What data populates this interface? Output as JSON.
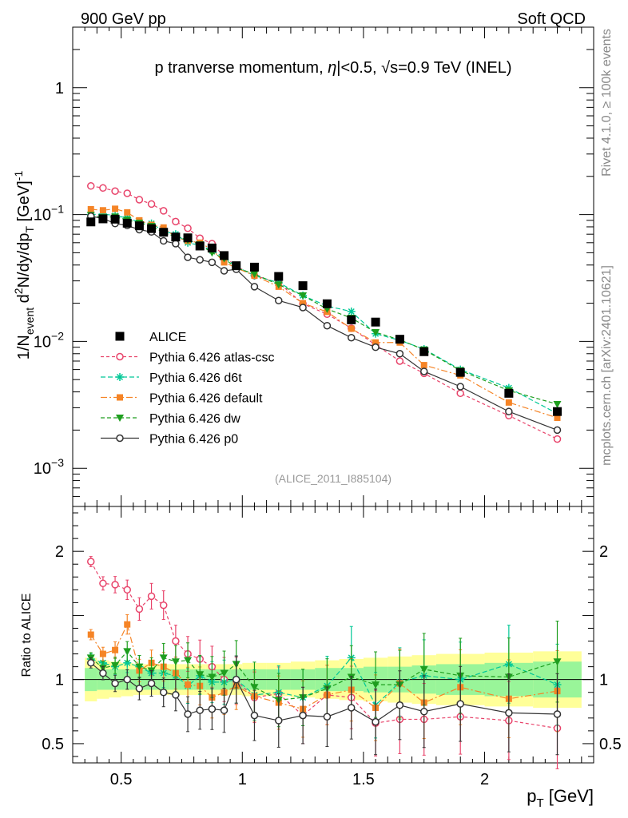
{
  "header": {
    "left": "900 GeV pp",
    "right": "Soft QCD"
  },
  "side_labels": {
    "rivet": "Rivet 4.1.0, ≥ 100k events",
    "mcplots": "mcplots.cern.ch [arXiv:2401.10621]"
  },
  "chart_data": {
    "type": "line",
    "title_parts": {
      "t1": "p tranverse momentum, ",
      "eta": "η",
      "t2": "|<0.5, ",
      "sqrt": "√s",
      "t3": "=0.9 TeV (INEL)"
    },
    "ylabel_parts": {
      "a": "1/N",
      "b": "event",
      "c": " d",
      "d": "2",
      "e": "N/dy/dp",
      "f": "T",
      "g": " [GeV]",
      "h": "-1"
    },
    "xlabel_parts": {
      "a": "p",
      "b": "T",
      "c": " [GeV]"
    },
    "ratio_ylabel": "Ratio to ALICE",
    "analysis_id": "(ALICE_2011_I885104)",
    "xlim": [
      0.3,
      2.45
    ],
    "ylim": [
      0.0005,
      3
    ],
    "ratio_ylim": [
      0.35,
      2.35
    ],
    "x_ticks": [
      0.5,
      1,
      1.5,
      2
    ],
    "x_tick_labels": [
      "0.5",
      "1",
      "1.5",
      "2"
    ],
    "y_ticks": [
      1,
      0.1,
      0.01,
      0.001
    ],
    "y_tick_labels": [
      {
        "base": "1",
        "exp": ""
      },
      {
        "base": "10",
        "exp": "−1"
      },
      {
        "base": "10",
        "exp": "−2"
      },
      {
        "base": "10",
        "exp": "−3"
      }
    ],
    "ratio_ticks": [
      0.5,
      1,
      2
    ],
    "ratio_tick_labels": [
      "0.5",
      "1",
      "2"
    ],
    "x": [
      0.375,
      0.425,
      0.475,
      0.525,
      0.575,
      0.625,
      0.675,
      0.725,
      0.775,
      0.825,
      0.875,
      0.925,
      0.975,
      1.05,
      1.15,
      1.25,
      1.35,
      1.45,
      1.55,
      1.65,
      1.75,
      1.9,
      2.1,
      2.3
    ],
    "data": {
      "name": "ALICE",
      "values": [
        0.0875,
        0.0925,
        0.092,
        0.0855,
        0.0815,
        0.0775,
        0.0725,
        0.0665,
        0.0655,
        0.0565,
        0.0545,
        0.0475,
        0.0395,
        0.0385,
        0.0325,
        0.0275,
        0.0198,
        0.0148,
        0.0142,
        0.0104,
        0.0083,
        0.0057,
        0.0039,
        0.0028
      ]
    },
    "series": [
      {
        "name": "Pythia 6.426 atlas-csc",
        "color": "#e8436a",
        "marker": "open-circle",
        "dash": "4,3",
        "values": [
          0.168,
          0.162,
          0.153,
          0.147,
          0.131,
          0.121,
          0.107,
          0.088,
          0.078,
          0.065,
          0.059,
          0.047,
          0.039,
          0.033,
          0.029,
          0.0198,
          0.0164,
          0.0127,
          0.0094,
          0.007,
          0.0056,
          0.0039,
          0.0026,
          0.0017
        ],
        "ratio": [
          1.92,
          1.75,
          1.74,
          1.7,
          1.55,
          1.65,
          1.58,
          1.3,
          1.2,
          1.16,
          1.1,
          1.0,
          0.99,
          0.86,
          0.89,
          0.72,
          0.88,
          0.86,
          0.66,
          0.69,
          0.69,
          0.71,
          0.68,
          0.62
        ]
      },
      {
        "name": "Pythia 6.426 d6t",
        "color": "#00c896",
        "marker": "star",
        "dash": "6,3",
        "values": [
          0.1,
          0.101,
          0.098,
          0.094,
          0.087,
          0.085,
          0.074,
          0.07,
          0.06,
          0.057,
          0.052,
          0.046,
          0.039,
          0.033,
          0.029,
          0.023,
          0.019,
          0.0172,
          0.0115,
          0.0102,
          0.0087,
          0.006,
          0.0043,
          0.0027
        ],
        "ratio": [
          1.16,
          1.13,
          1.1,
          1.13,
          1.1,
          1.05,
          1.05,
          1.03,
          0.95,
          1.03,
          0.98,
          0.98,
          1.0,
          0.88,
          0.9,
          0.86,
          0.95,
          1.17,
          0.8,
          0.98,
          1.03,
          1.0,
          1.12,
          0.96
        ]
      },
      {
        "name": "Pythia 6.426 default",
        "color": "#f58426",
        "marker": "square",
        "dash": "8,3,2,3",
        "values": [
          0.11,
          0.108,
          0.111,
          0.104,
          0.09,
          0.083,
          0.079,
          0.066,
          0.062,
          0.06,
          0.053,
          0.042,
          0.038,
          0.033,
          0.027,
          0.02,
          0.0171,
          0.0126,
          0.0098,
          0.0098,
          0.0065,
          0.0054,
          0.0033,
          0.0025
        ],
        "ratio": [
          1.35,
          1.2,
          1.23,
          1.43,
          1.07,
          1.13,
          1.1,
          1.05,
          0.96,
          0.95,
          0.86,
          0.9,
          0.95,
          0.87,
          0.82,
          0.77,
          0.88,
          0.92,
          0.78,
          0.97,
          0.82,
          0.94,
          0.85,
          0.91
        ]
      },
      {
        "name": "Pythia 6.426 dw",
        "color": "#1e9e1e",
        "marker": "triangle-down",
        "dash": "5,3",
        "values": [
          0.099,
          0.095,
          0.096,
          0.091,
          0.086,
          0.081,
          0.072,
          0.067,
          0.063,
          0.058,
          0.05,
          0.045,
          0.038,
          0.034,
          0.028,
          0.023,
          0.018,
          0.0153,
          0.0118,
          0.0103,
          0.0086,
          0.0059,
          0.0041,
          0.0032
        ],
        "ratio": [
          1.17,
          1.09,
          1.11,
          1.22,
          1.1,
          1.07,
          1.17,
          1.14,
          1.15,
          1.04,
          1.02,
          1.05,
          1.12,
          0.94,
          0.84,
          0.86,
          0.93,
          1.02,
          0.96,
          0.96,
          1.08,
          1.03,
          1.02,
          1.14
        ]
      },
      {
        "name": "Pythia 6.426 p0",
        "color": "#333333",
        "marker": "open-circle",
        "dash": "",
        "values": [
          0.097,
          0.093,
          0.085,
          0.082,
          0.076,
          0.073,
          0.062,
          0.059,
          0.046,
          0.044,
          0.042,
          0.036,
          0.037,
          0.027,
          0.021,
          0.0185,
          0.0133,
          0.0107,
          0.009,
          0.008,
          0.0058,
          0.0044,
          0.0028,
          0.002
        ],
        "ratio": [
          1.13,
          1.05,
          0.97,
          1.0,
          0.93,
          0.97,
          0.9,
          0.88,
          0.73,
          0.76,
          0.77,
          0.76,
          1.0,
          0.72,
          0.68,
          0.72,
          0.71,
          0.78,
          0.67,
          0.8,
          0.75,
          0.81,
          0.74,
          0.73
        ]
      }
    ],
    "uncertainty_band": {
      "x_edges": [
        0.35,
        0.4,
        0.45,
        0.5,
        0.55,
        0.6,
        0.65,
        0.7,
        0.75,
        0.8,
        0.85,
        0.9,
        0.95,
        1.0,
        1.1,
        1.2,
        1.3,
        1.4,
        1.5,
        1.6,
        1.7,
        1.8,
        2.0,
        2.2,
        2.4
      ],
      "inner": [
        0.09,
        0.08,
        0.08,
        0.08,
        0.08,
        0.08,
        0.08,
        0.08,
        0.08,
        0.08,
        0.08,
        0.08,
        0.08,
        0.08,
        0.08,
        0.08,
        0.09,
        0.09,
        0.1,
        0.1,
        0.11,
        0.12,
        0.13,
        0.14
      ],
      "outer": [
        0.17,
        0.15,
        0.14,
        0.13,
        0.12,
        0.12,
        0.12,
        0.12,
        0.12,
        0.12,
        0.12,
        0.12,
        0.12,
        0.13,
        0.13,
        0.14,
        0.15,
        0.16,
        0.17,
        0.18,
        0.19,
        0.2,
        0.21,
        0.22
      ],
      "inner_color": "#99f599",
      "outer_color": "#ffff99"
    },
    "legend_position": "middle-left"
  }
}
